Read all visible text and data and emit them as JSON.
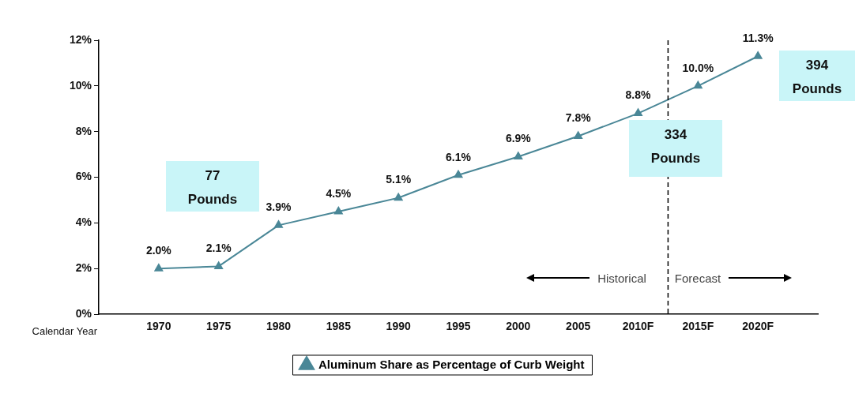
{
  "chart_data": {
    "type": "line",
    "xlabel": "Calendar Year",
    "x": [
      1970,
      1975,
      1980,
      1985,
      1990,
      1995,
      2000,
      2005,
      2010,
      2015,
      2020
    ],
    "series": [
      {
        "name": "Aluminum Share as Percentage of Curb Weight",
        "color": "#4a8797",
        "values": [
          2.0,
          2.1,
          3.9,
          4.5,
          5.1,
          6.1,
          6.9,
          7.8,
          8.8,
          10.0,
          11.3
        ],
        "value_labels": [
          "2.0%",
          "2.1%",
          "3.9%",
          "4.5%",
          "5.1%",
          "6.1%",
          "6.9%",
          "7.8%",
          "8.8%",
          "10.0%",
          "11.3%"
        ]
      }
    ],
    "xlim": [
      1965,
      2025
    ],
    "xticks": [
      {
        "value": 1970,
        "label": "1970"
      },
      {
        "value": 1975,
        "label": "1975"
      },
      {
        "value": 1980,
        "label": "1980"
      },
      {
        "value": 1985,
        "label": "1985"
      },
      {
        "value": 1990,
        "label": "1990"
      },
      {
        "value": 1995,
        "label": "1995"
      },
      {
        "value": 2000,
        "label": "2000"
      },
      {
        "value": 2005,
        "label": "2005"
      },
      {
        "value": 2010,
        "label": "2010F"
      },
      {
        "value": 2015,
        "label": "2015F"
      },
      {
        "value": 2020,
        "label": "2020F"
      }
    ],
    "ylim": [
      0,
      12
    ],
    "yticks": [
      {
        "value": 0,
        "label": "0%"
      },
      {
        "value": 2,
        "label": "2%"
      },
      {
        "value": 4,
        "label": "4%"
      },
      {
        "value": 6,
        "label": "6%"
      },
      {
        "value": 8,
        "label": "8%"
      },
      {
        "value": 10,
        "label": "10%"
      },
      {
        "value": 12,
        "label": "12%"
      }
    ],
    "ref_lines": [
      {
        "axis": "x",
        "value": 2012.5,
        "line_style": "dashed",
        "color": "#000000"
      }
    ],
    "annotations": [
      "77 Pounds",
      "334 Pounds",
      "394 Pounds",
      "Historical",
      "Forecast"
    ],
    "legend": "bottom",
    "marker": "triangle",
    "line_style": "solid"
  }
}
